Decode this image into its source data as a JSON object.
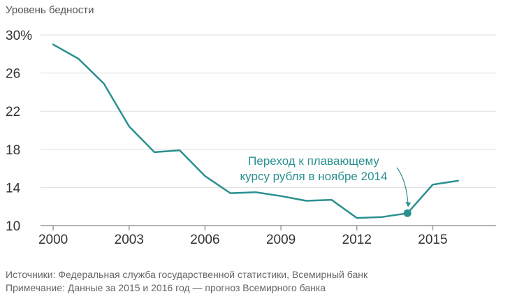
{
  "chart_data": {
    "type": "line",
    "ylabel": "Уровень бедности",
    "y_tick_labels": [
      "30%",
      "26",
      "22",
      "18",
      "14",
      "10"
    ],
    "y_ticks": [
      30,
      26,
      22,
      18,
      14,
      10
    ],
    "ylim": [
      10,
      30
    ],
    "x_ticks": [
      2000,
      2003,
      2006,
      2009,
      2012,
      2015
    ],
    "x_tick_labels": [
      "2000",
      "2003",
      "2006",
      "2009",
      "2012",
      "2015"
    ],
    "xlim": [
      1999.5,
      2017.5
    ],
    "grid": "horizontal",
    "series": [
      {
        "x": [
          2000,
          2001,
          2002,
          2003,
          2004,
          2005,
          2006,
          2007,
          2008,
          2009,
          2010,
          2011,
          2012,
          2013,
          2014,
          2015,
          2016
        ],
        "values": [
          29.0,
          27.5,
          24.9,
          20.4,
          17.7,
          17.9,
          15.2,
          13.4,
          13.5,
          13.1,
          12.6,
          12.7,
          10.8,
          10.9,
          11.3,
          14.3,
          14.7
        ],
        "color": "#2a8f8f"
      }
    ],
    "annotation": {
      "lines": [
        "Переход к плавающему",
        "курсу рубля в ноябре 2014"
      ],
      "x": 2014,
      "y": 11.3
    }
  },
  "footer": {
    "sources": "Источники: Федеральная служба государственной статистики, Всемирный банк",
    "note": "Примечание: Данные за 2015 и 2016 год — прогноз Всемирного банка"
  }
}
